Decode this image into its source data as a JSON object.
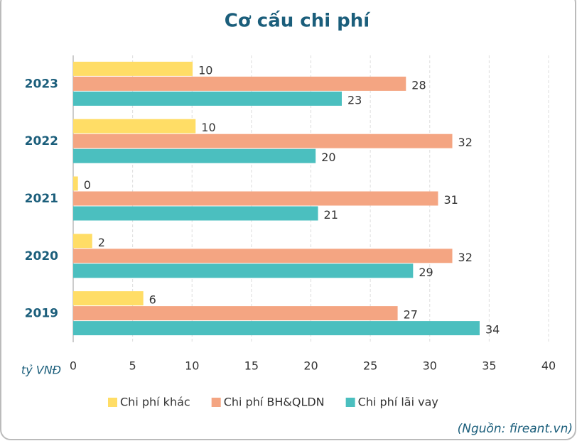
{
  "chart_data": {
    "type": "barh",
    "title": "Cơ cấu chi phí",
    "x_label": "tỷ VNĐ",
    "source": "(Nguồn: fireant.vn)",
    "categories": [
      "2023",
      "2022",
      "2021",
      "2020",
      "2019"
    ],
    "series": [
      {
        "name": "Chi phí khác",
        "color": "#ffdd66",
        "values": [
          10.05,
          10.3,
          0.4,
          1.6,
          5.9
        ],
        "value_labels": [
          "10",
          "10",
          "0",
          "2",
          "6"
        ]
      },
      {
        "name": "Chi phí BH&QLDN",
        "color": "#f4a582",
        "values": [
          28.0,
          31.9,
          30.7,
          31.9,
          27.3
        ],
        "value_labels": [
          "28",
          "32",
          "31",
          "32",
          "27"
        ]
      },
      {
        "name": "Chi phí lãi vay",
        "color": "#4bbfbf",
        "values": [
          22.6,
          20.4,
          20.6,
          28.6,
          34.2
        ],
        "value_labels": [
          "23",
          "20",
          "21",
          "29",
          "34"
        ]
      }
    ],
    "xlim": [
      0,
      40
    ],
    "xticks": [
      0,
      5,
      10,
      15,
      20,
      25,
      30,
      35,
      40
    ],
    "grid": true
  }
}
